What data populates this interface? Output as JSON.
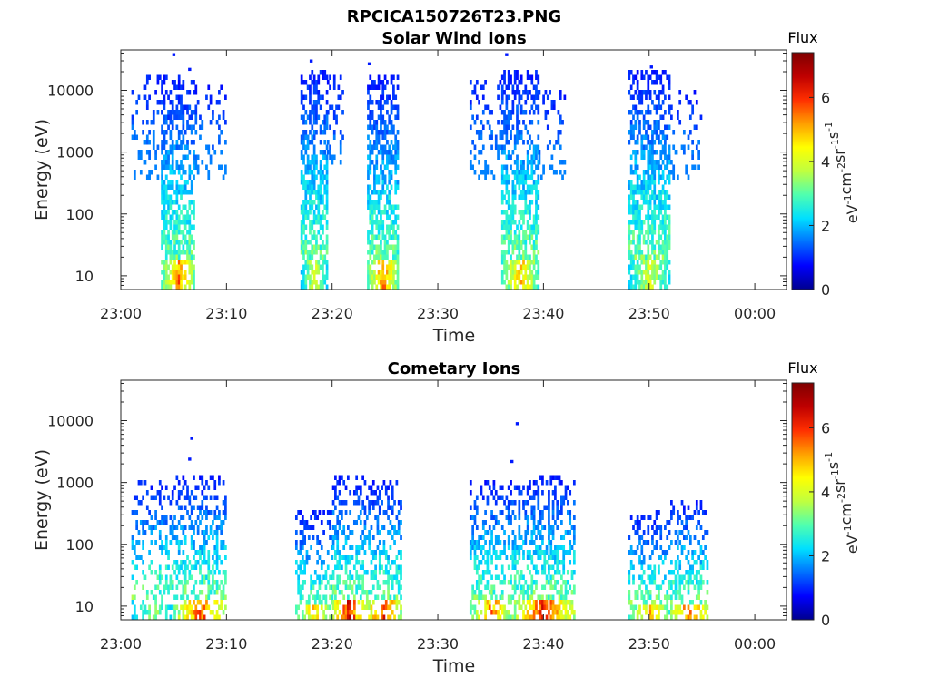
{
  "figure": {
    "title": "RPCICA150726T23.PNG"
  },
  "colormap": [
    "#00008f",
    "#0000ff",
    "#0070ff",
    "#00dfff",
    "#50ffaf",
    "#bfff40",
    "#ffff00",
    "#ff9f00",
    "#ff2f00",
    "#bf0000",
    "#800000"
  ],
  "chart_data": [
    {
      "type": "heatmap",
      "title": "Solar Wind Ions",
      "xlabel": "Time",
      "ylabel": "Energy (eV)",
      "y_scale": "log",
      "ylim": [
        6,
        45000
      ],
      "xlim": [
        "23:00",
        "00:03"
      ],
      "x_ticks": [
        "23:00",
        "23:10",
        "23:20",
        "23:30",
        "23:40",
        "23:50",
        "00:00"
      ],
      "y_ticks": [
        10,
        100,
        1000,
        10000
      ],
      "y_tick_labels": [
        "10",
        "100",
        "1000",
        "10000"
      ],
      "colorbar": {
        "label": "Flux",
        "unit_base": [
          "eV",
          "cm",
          "sr",
          "s"
        ],
        "unit_exp": [
          "-1",
          "-2",
          "-1",
          "-1"
        ],
        "range": [
          0,
          7.4
        ],
        "ticks": [
          0,
          2,
          4,
          6
        ],
        "tick_labels": [
          "0",
          "2",
          "4",
          "6"
        ]
      },
      "bursts": [
        {
          "start": "23:01",
          "end": "23:05",
          "emin": 300,
          "emax": 15000,
          "density": 0.3,
          "peak_flux": 1.6
        },
        {
          "start": "23:03.8",
          "end": "23:07",
          "emin": 6,
          "emax": 15000,
          "density": 0.75,
          "peak_flux": 6.0
        },
        {
          "start": "23:07",
          "end": "23:10",
          "emin": 300,
          "emax": 12000,
          "density": 0.3,
          "peak_flux": 1.6
        },
        {
          "start": "23:17",
          "end": "23:19.5",
          "emin": 6,
          "emax": 20000,
          "density": 0.75,
          "peak_flux": 4.5
        },
        {
          "start": "23:19.5",
          "end": "23:21",
          "emin": 600,
          "emax": 15000,
          "density": 0.4,
          "peak_flux": 1.6
        },
        {
          "start": "23:23.3",
          "end": "23:26.2",
          "emin": 6,
          "emax": 15000,
          "density": 0.75,
          "peak_flux": 6.0
        },
        {
          "start": "23:33",
          "end": "23:36",
          "emin": 300,
          "emax": 15000,
          "density": 0.35,
          "peak_flux": 1.6
        },
        {
          "start": "23:36",
          "end": "23:39.5",
          "emin": 6,
          "emax": 20000,
          "density": 0.75,
          "peak_flux": 5.5
        },
        {
          "start": "23:39.5",
          "end": "23:42",
          "emin": 300,
          "emax": 10000,
          "density": 0.3,
          "peak_flux": 1.6
        },
        {
          "start": "23:48",
          "end": "23:52",
          "emin": 6,
          "emax": 20000,
          "density": 0.75,
          "peak_flux": 4.5
        },
        {
          "start": "23:52",
          "end": "23:55",
          "emin": 300,
          "emax": 10000,
          "density": 0.3,
          "peak_flux": 1.6
        }
      ],
      "isolated_points": [
        {
          "time": "23:05",
          "energy": 38000
        },
        {
          "time": "23:06.5",
          "energy": 22000
        },
        {
          "time": "23:18",
          "energy": 30000
        },
        {
          "time": "23:23.5",
          "energy": 27000
        },
        {
          "time": "23:36.5",
          "energy": 38000
        },
        {
          "time": "23:50.2",
          "energy": 24000
        }
      ]
    },
    {
      "type": "heatmap",
      "title": "Cometary Ions",
      "xlabel": "Time",
      "ylabel": "Energy (eV)",
      "y_scale": "log",
      "ylim": [
        6,
        45000
      ],
      "xlim": [
        "23:00",
        "00:03"
      ],
      "x_ticks": [
        "23:00",
        "23:10",
        "23:20",
        "23:30",
        "23:40",
        "23:50",
        "00:00"
      ],
      "y_ticks": [
        10,
        100,
        1000,
        10000
      ],
      "y_tick_labels": [
        "10",
        "100",
        "1000",
        "10000"
      ],
      "colorbar": {
        "label": "Flux",
        "unit_base": [
          "eV",
          "cm",
          "sr",
          "s"
        ],
        "unit_exp": [
          "-1",
          "-2",
          "-1",
          "-1"
        ],
        "range": [
          0,
          7.4
        ],
        "ticks": [
          0,
          2,
          4,
          6
        ],
        "tick_labels": [
          "0",
          "2",
          "4",
          "6"
        ]
      },
      "bursts": [
        {
          "start": "23:01",
          "end": "23:05",
          "emin": 6,
          "emax": 1000,
          "density": 0.4,
          "peak_flux": 4.0
        },
        {
          "start": "23:05",
          "end": "23:10",
          "emin": 6,
          "emax": 1200,
          "density": 0.5,
          "peak_flux": 6.5
        },
        {
          "start": "23:16.5",
          "end": "23:20",
          "emin": 6,
          "emax": 300,
          "density": 0.45,
          "peak_flux": 5.5
        },
        {
          "start": "23:20",
          "end": "23:23",
          "emin": 6,
          "emax": 1200,
          "density": 0.6,
          "peak_flux": 7.3
        },
        {
          "start": "23:23",
          "end": "23:26.5",
          "emin": 6,
          "emax": 1000,
          "density": 0.55,
          "peak_flux": 6.8
        },
        {
          "start": "23:33",
          "end": "23:37",
          "emin": 6,
          "emax": 1000,
          "density": 0.5,
          "peak_flux": 6.0
        },
        {
          "start": "23:37",
          "end": "23:43",
          "emin": 6,
          "emax": 1200,
          "density": 0.6,
          "peak_flux": 6.8
        },
        {
          "start": "23:48",
          "end": "23:52",
          "emin": 6,
          "emax": 300,
          "density": 0.45,
          "peak_flux": 5.5
        },
        {
          "start": "23:52",
          "end": "23:55.5",
          "emin": 6,
          "emax": 500,
          "density": 0.5,
          "peak_flux": 6.8
        }
      ],
      "isolated_points": [
        {
          "time": "23:06.7",
          "energy": 5200
        },
        {
          "time": "23:06.5",
          "energy": 2400
        },
        {
          "time": "23:37.5",
          "energy": 9000
        },
        {
          "time": "23:37",
          "energy": 2200
        }
      ]
    }
  ]
}
